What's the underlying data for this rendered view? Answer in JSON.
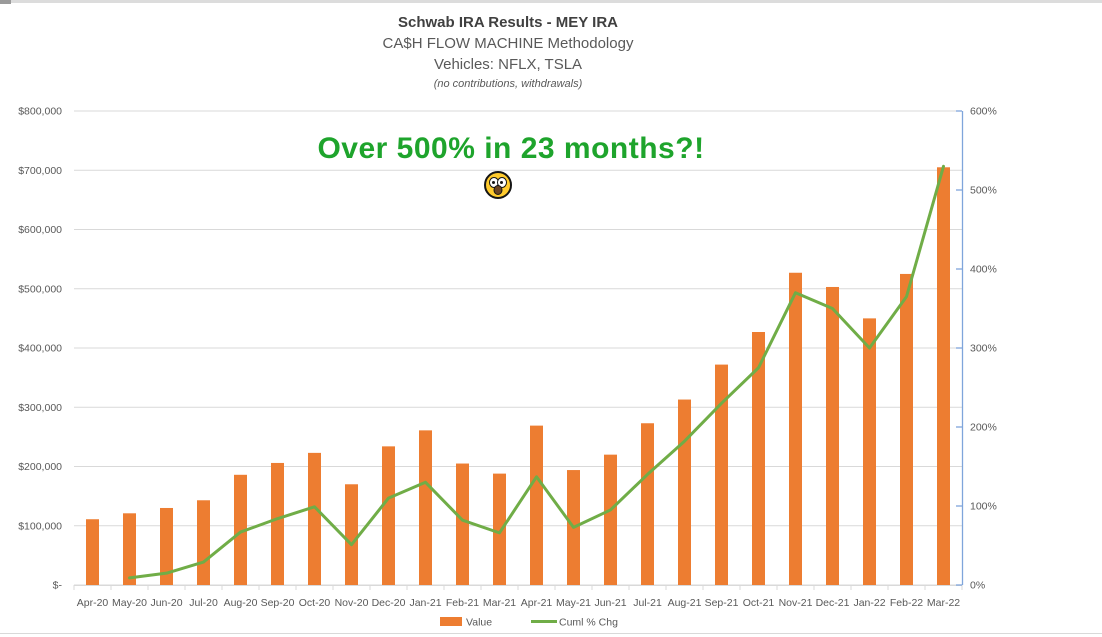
{
  "header": {
    "title": "Schwab IRA Results - MEY IRA",
    "methodology": "CA$H FLOW MACHINE Methodology",
    "vehicles": "Vehicles: NFLX, TSLA",
    "note": "(no contributions, withdrawals)"
  },
  "annotation": {
    "text": "Over 500% in 23 months?!",
    "color": "#1ea42c",
    "emoji": "astonished-face"
  },
  "chart_data": {
    "type": "bar",
    "combo": "bar+line",
    "title": "Schwab IRA Results - MEY IRA",
    "categories": [
      "Apr-20",
      "May-20",
      "Jun-20",
      "Jul-20",
      "Aug-20",
      "Sep-20",
      "Oct-20",
      "Nov-20",
      "Dec-20",
      "Jan-21",
      "Feb-21",
      "Mar-21",
      "Apr-21",
      "May-21",
      "Jun-21",
      "Jul-21",
      "Aug-21",
      "Sep-21",
      "Oct-21",
      "Nov-21",
      "Dec-21",
      "Jan-22",
      "Feb-22",
      "Mar-22"
    ],
    "series": [
      {
        "name": "Value",
        "type": "bar",
        "axis": "left",
        "color": "#ED7D31",
        "values": [
          111000,
          121000,
          130000,
          143000,
          186000,
          206000,
          223000,
          170000,
          234000,
          261000,
          205000,
          188000,
          269000,
          194000,
          220000,
          273000,
          313000,
          372000,
          427000,
          527000,
          503000,
          450000,
          525000,
          705000
        ]
      },
      {
        "name": "Cuml % Chg",
        "type": "line",
        "axis": "right",
        "color": "#70AD47",
        "values": [
          null,
          9,
          15,
          29,
          67,
          84,
          99,
          51,
          110,
          130,
          82,
          66,
          137,
          73,
          95,
          140,
          182,
          230,
          275,
          370,
          350,
          300,
          365,
          530
        ]
      }
    ],
    "left_axis": {
      "min": 0,
      "max": 800000,
      "step": 100000,
      "tick_labels": [
        "$-",
        "$100,000",
        "$200,000",
        "$300,000",
        "$400,000",
        "$500,000",
        "$600,000",
        "$700,000",
        "$800,000"
      ]
    },
    "right_axis": {
      "min": 0,
      "max": 600,
      "step": 100,
      "tick_labels": [
        "0%",
        "100%",
        "200%",
        "300%",
        "400%",
        "500%",
        "600%"
      ],
      "line_color": "#7FA5DB"
    },
    "legend": {
      "position": "bottom",
      "items": [
        {
          "label": "Value",
          "swatch": "rect",
          "color": "#ED7D31"
        },
        {
          "label": "Cuml % Chg",
          "swatch": "line",
          "color": "#70AD47"
        }
      ]
    },
    "grid": true,
    "gridline_color": "#D9D9D9",
    "axis_text_color": "#595959"
  }
}
